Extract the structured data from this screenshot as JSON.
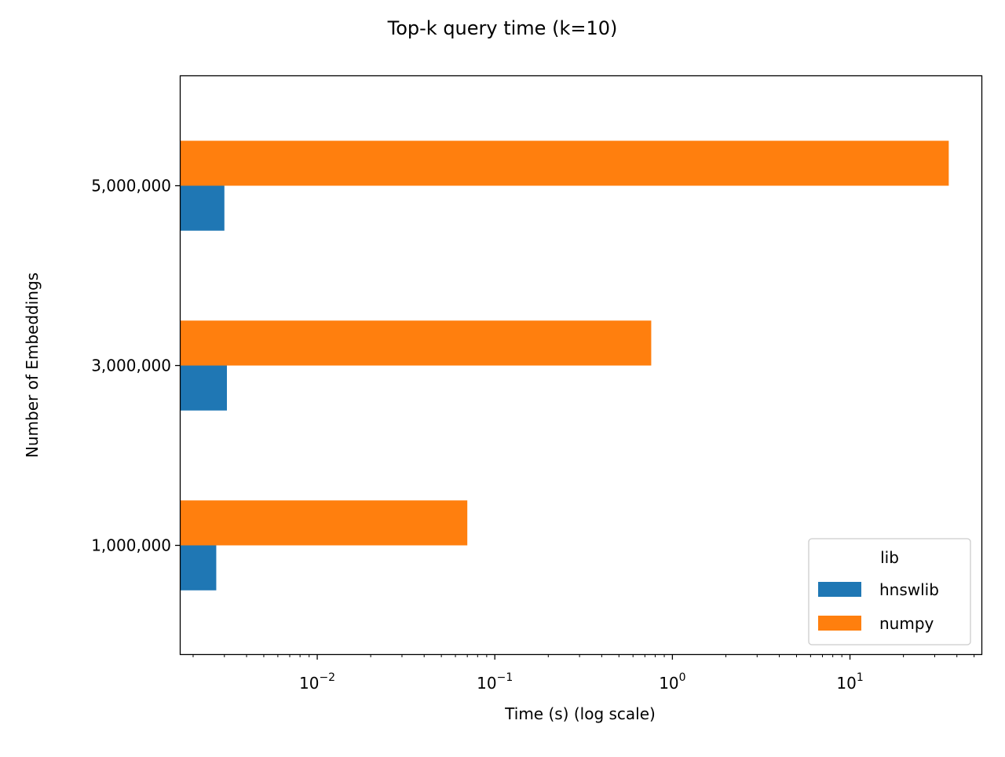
{
  "chart_data": {
    "type": "bar",
    "orientation": "horizontal",
    "title": "Top-k query time (k=10)",
    "xlabel": "Time (s) (log scale)",
    "ylabel": "Number of Embeddings",
    "x_scale": "log",
    "xlim": [
      0.0017,
      55
    ],
    "categories": [
      "1,000,000",
      "3,000,000",
      "5,000,000"
    ],
    "series": [
      {
        "name": "hnswlib",
        "color": "#1f77b4",
        "values": [
          0.0027,
          0.0031,
          0.003
        ]
      },
      {
        "name": "numpy",
        "color": "#ff7f0e",
        "values": [
          0.07,
          0.76,
          36
        ]
      }
    ],
    "x_ticks": [
      {
        "value": 0.01,
        "base": "10",
        "exp": "−2"
      },
      {
        "value": 0.1,
        "base": "10",
        "exp": "−1"
      },
      {
        "value": 1,
        "base": "10",
        "exp": "0"
      },
      {
        "value": 10,
        "base": "10",
        "exp": "1"
      }
    ],
    "legend": {
      "title": "lib",
      "position": "lower-right"
    },
    "grid": false
  }
}
